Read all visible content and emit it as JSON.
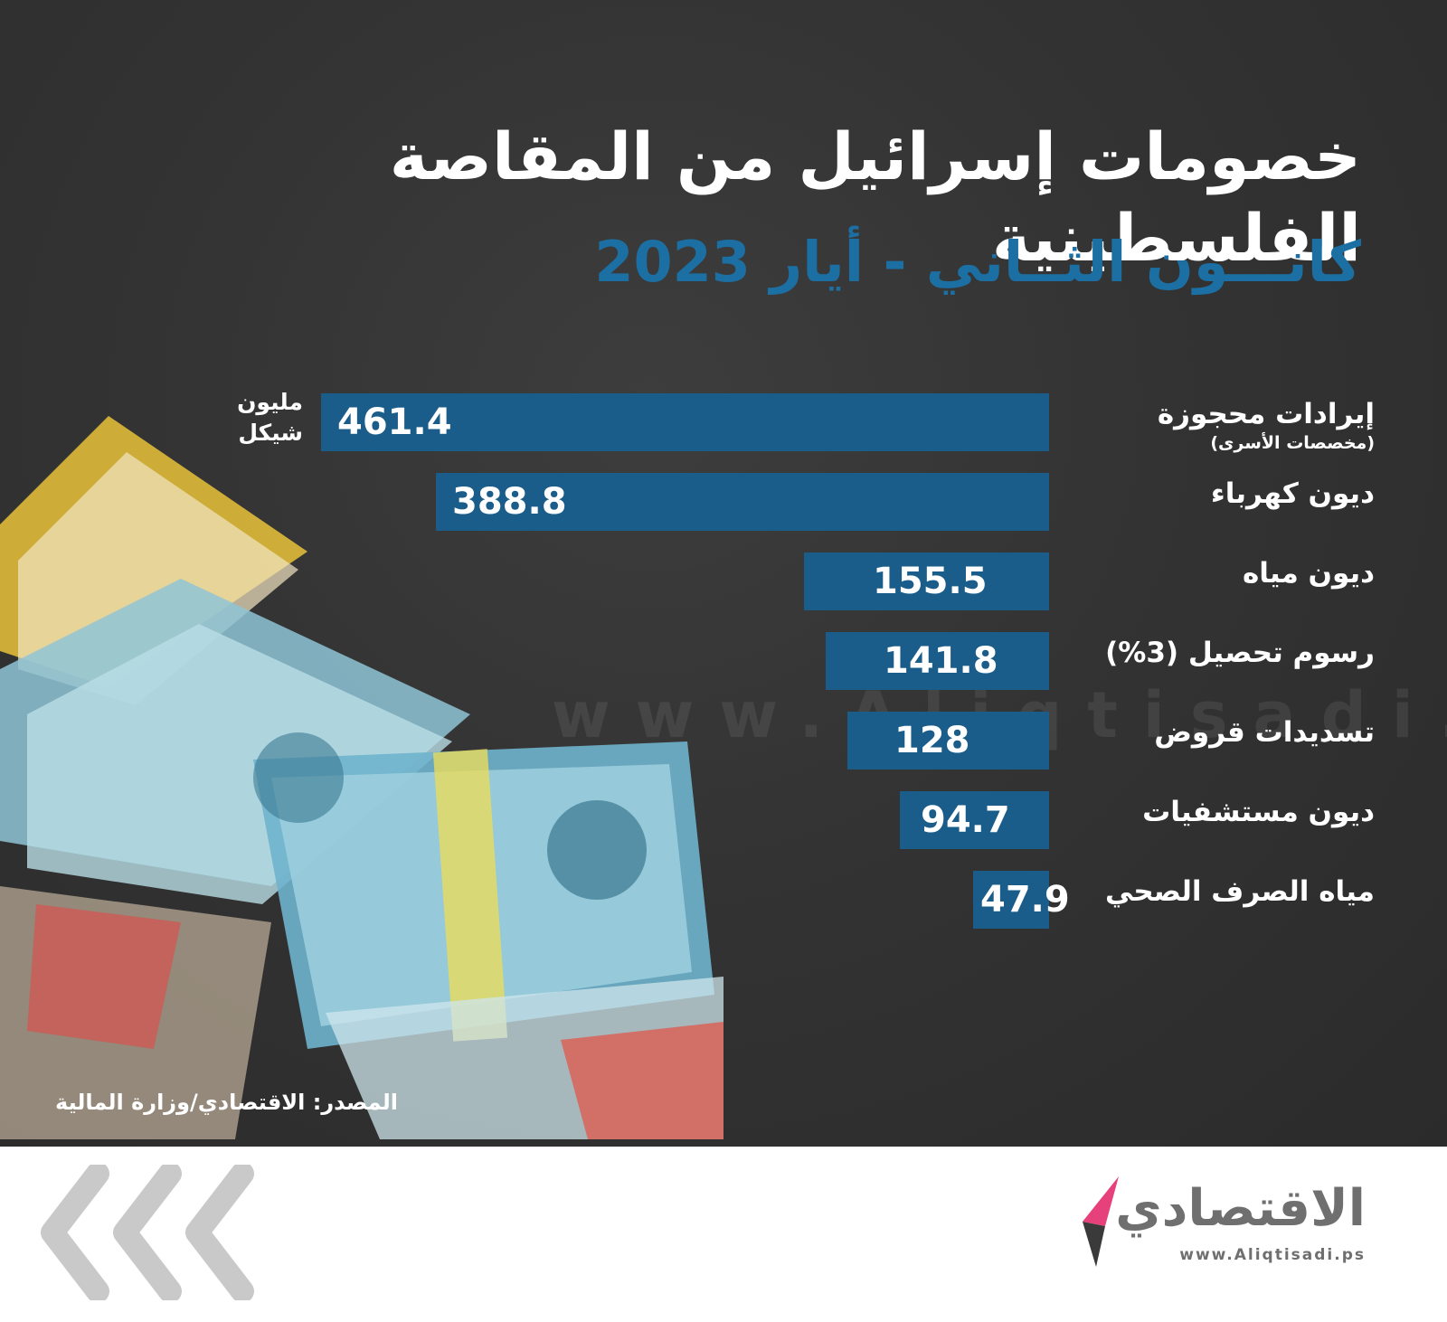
{
  "header": {
    "title": "خصومات إسرائيل من المقاصة الفلسطينية",
    "subtitle": "كانـــون الثــاني - أيار 2023"
  },
  "unit": {
    "line1": "مليون",
    "line2": "شيكل"
  },
  "watermark": {
    "url": "www.Aliqtisadi.ps"
  },
  "chart_data": {
    "type": "bar",
    "orientation": "horizontal",
    "categories": [
      "إيرادات محجوزة",
      "ديون كهرباء",
      "ديون مياه",
      "رسوم تحصيل (3%)",
      "تسديدات قروض",
      "ديون مستشفيات",
      "مياه الصرف الصحي"
    ],
    "category_notes": [
      "(مخصصات الأسرى)",
      "",
      "",
      "",
      "",
      "",
      ""
    ],
    "values": [
      461.4,
      388.8,
      155.5,
      141.8,
      128,
      94.7,
      47.9
    ],
    "value_labels": [
      "461.4",
      "388.8",
      "155.5",
      "141.8",
      "128",
      "94.7",
      "47.9"
    ],
    "title": "خصومات إسرائيل من المقاصة الفلسطينية",
    "subtitle": "كانـــون الثــاني - أيار 2023",
    "unit_label": "مليون شيكل",
    "bar_color": "#1a5d8a",
    "grid": false
  },
  "source": {
    "text": "المصدر: الاقتصادي/وزارة المالية"
  },
  "brand": {
    "name": "الاقتصادي",
    "url": "www.Aliqtisadi.ps",
    "accent_color": "#e6417a",
    "text_color": "#6f6f6f"
  },
  "colors": {
    "background": "#333333",
    "subtitle": "#1c6fa3",
    "bar": "#1a5d8a"
  }
}
